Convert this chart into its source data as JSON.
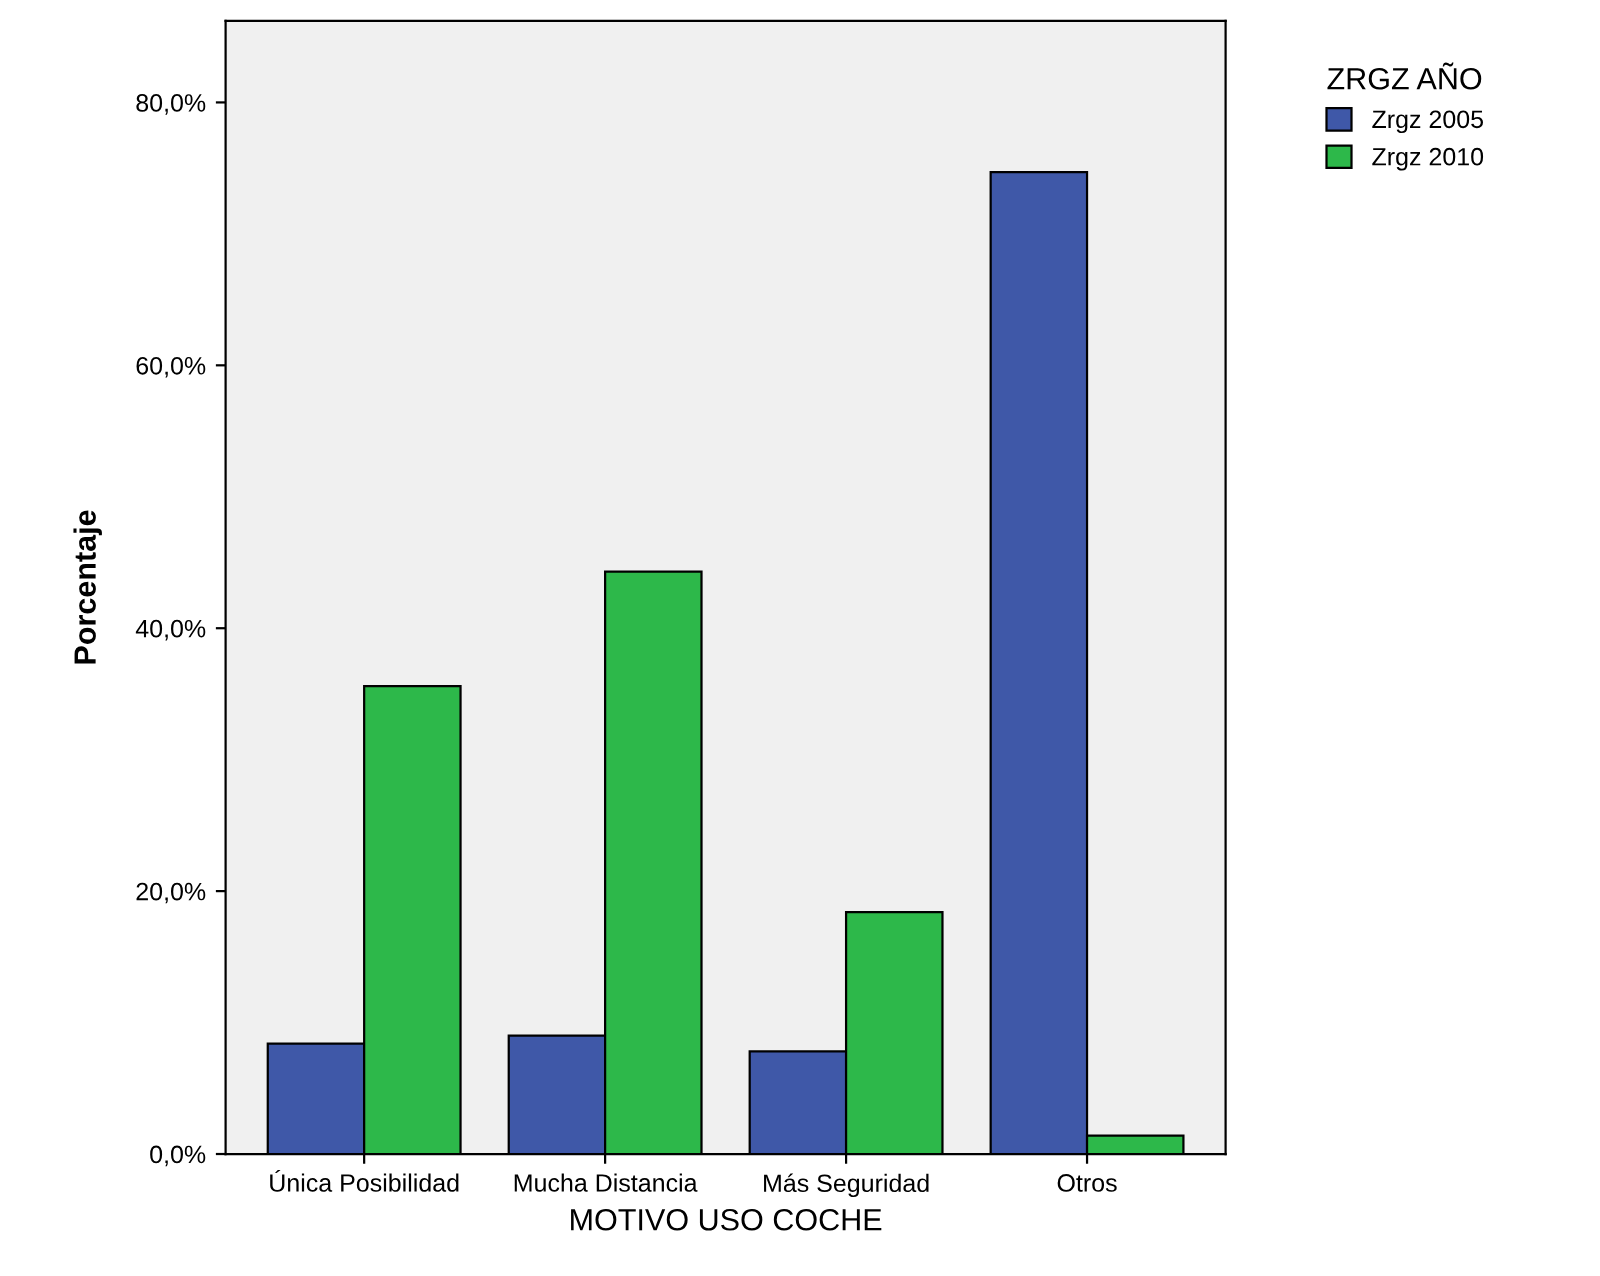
{
  "chart_data": {
    "type": "bar",
    "xlabel": "MOTIVO USO COCHE",
    "ylabel": "Porcentaje",
    "legend_title": "ZRGZ AÑO",
    "categories": [
      "Única Posibilidad",
      "Mucha Distancia",
      "Más Seguridad",
      "Otros"
    ],
    "series": [
      {
        "name": "Zrgz 2005",
        "color": "#3f58a8",
        "values": [
          8.4,
          9.0,
          7.8,
          74.7
        ]
      },
      {
        "name": "Zrgz 2010",
        "color": "#2db84a",
        "values": [
          35.6,
          44.3,
          18.4,
          1.4
        ]
      }
    ],
    "ylim": [
      0,
      86.2
    ],
    "yticks": [
      {
        "value": 0,
        "label": "0,0%"
      },
      {
        "value": 20,
        "label": "20,0%"
      },
      {
        "value": 40,
        "label": "40,0%"
      },
      {
        "value": 60,
        "label": "60,0%"
      },
      {
        "value": 80,
        "label": "80,0%"
      }
    ],
    "grid": false,
    "legend": "top right"
  }
}
